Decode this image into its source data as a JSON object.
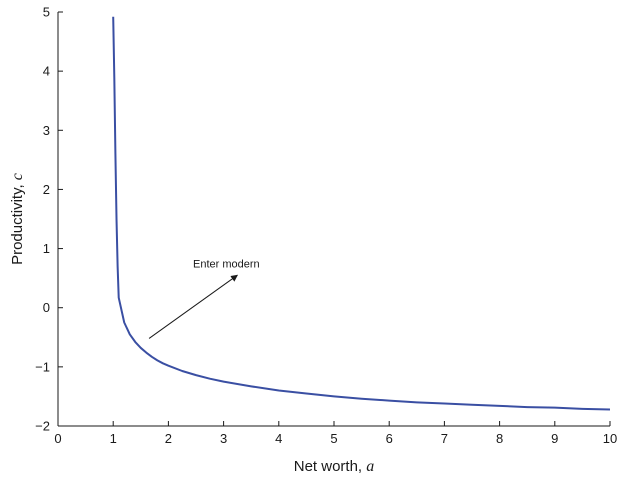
{
  "chart_data": {
    "type": "line",
    "title": "",
    "xlabel": "Net worth, ",
    "xlabel_var": "a",
    "ylabel": "Productivity, ",
    "ylabel_var": "c",
    "xlim": [
      0,
      10
    ],
    "ylim": [
      -2,
      5
    ],
    "xticks": [
      0,
      1,
      2,
      3,
      4,
      5,
      6,
      7,
      8,
      9,
      10
    ],
    "yticks": [
      -2,
      -1,
      0,
      1,
      2,
      3,
      4,
      5
    ],
    "xtick_labels": [
      "0",
      "1",
      "2",
      "3",
      "4",
      "5",
      "6",
      "7",
      "8",
      "9",
      "10"
    ],
    "ytick_labels": [
      "−2",
      "−1",
      "0",
      "1",
      "2",
      "3",
      "4",
      "5"
    ],
    "grid": false,
    "legend": "none",
    "series": [
      {
        "color": "#3a4fa3",
        "x": [
          1.0,
          1.02,
          1.04,
          1.06,
          1.08,
          1.1,
          1.2,
          1.3,
          1.4,
          1.5,
          1.6,
          1.7,
          1.8,
          1.9,
          2.0,
          2.25,
          2.5,
          2.75,
          3.0,
          3.5,
          4.0,
          4.5,
          5.0,
          5.5,
          6.0,
          6.5,
          7.0,
          7.5,
          8.0,
          8.5,
          9.0,
          9.5,
          10.0
        ],
        "y": [
          4.92,
          3.9,
          2.6,
          1.5,
          0.7,
          0.17,
          -0.25,
          -0.45,
          -0.58,
          -0.68,
          -0.76,
          -0.83,
          -0.89,
          -0.94,
          -0.98,
          -1.07,
          -1.14,
          -1.2,
          -1.25,
          -1.33,
          -1.4,
          -1.45,
          -1.5,
          -1.54,
          -1.57,
          -1.6,
          -1.62,
          -1.64,
          -1.66,
          -1.68,
          -1.69,
          -1.71,
          -1.72
        ]
      }
    ],
    "annotations": [
      {
        "text": "Enter modern",
        "arrow_from": [
          1.65,
          -0.52
        ],
        "arrow_to": [
          3.25,
          0.55
        ],
        "text_at": [
          3.05,
          0.68
        ]
      }
    ]
  }
}
